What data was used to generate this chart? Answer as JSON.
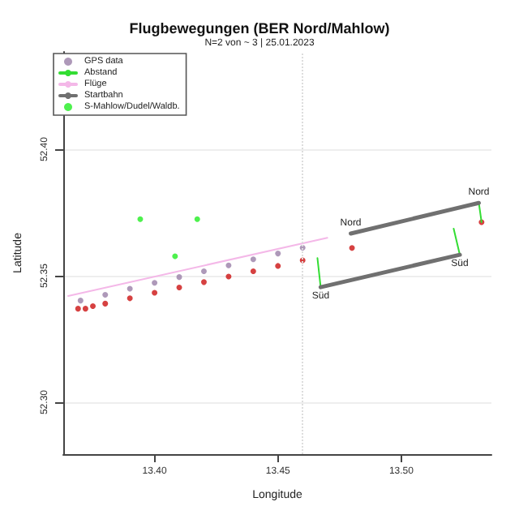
{
  "chart_data": {
    "type": "scatter",
    "title": "Flugbewegungen (BER Nord/Mahlow)",
    "subtitle": "N=2 von ~ 3 | 25.01.2023",
    "xlabel": "Longitude",
    "ylabel": "Latitude",
    "xlim": [
      13.363,
      13.5365
    ],
    "ylim": [
      52.2795,
      52.4385
    ],
    "xticks": [
      {
        "value": 13.4,
        "label": "13.40"
      },
      13.45,
      {
        "value": 13.5,
        "label": "13.50"
      }
    ],
    "yticks": [
      {
        "value": 52.3,
        "label": "52.30"
      },
      52.35,
      {
        "value": 52.4,
        "label": "52.40"
      }
    ],
    "grid": "y",
    "legend": "top left",
    "marker": "circle",
    "series": [
      {
        "name": "GPS data",
        "type": "scatter",
        "color": "#9a7fa8",
        "x": [
          13.37,
          13.38,
          13.39,
          13.4,
          13.41,
          13.42,
          13.43,
          13.44,
          13.45,
          13.46
        ],
        "values": [
          52.3402,
          52.3425,
          52.3449,
          52.3472,
          52.3495,
          52.3518,
          52.3541,
          52.3565,
          52.3588,
          52.3611
        ]
      },
      {
        "name": "Abstand",
        "type": "line",
        "marker": "none",
        "color": "#33dd33",
        "x": [
          13.466,
          13.4673,
          null,
          13.5212,
          13.5237,
          null,
          13.5314,
          13.5325
        ],
        "values": [
          52.357,
          52.3455,
          null,
          52.3686,
          52.3583,
          null,
          52.3788,
          52.3712
        ]
      },
      {
        "name": "Flüge",
        "type": "line",
        "marker": "none",
        "color": "#f4b8e8",
        "x": [
          13.365,
          13.47
        ],
        "values": [
          52.342,
          52.365
        ]
      },
      {
        "name": "Startbahn",
        "type": "line",
        "marker": "none",
        "color": "#707070",
        "x": [
          13.4673,
          13.5237,
          null,
          13.4795,
          13.5314
        ],
        "values": [
          52.3455,
          52.3583,
          null,
          52.3667,
          52.3788
        ]
      },
      {
        "name": "S-Mahlow/Dudel/Waldb.",
        "type": "scatter",
        "color": "#22ee22",
        "x": [
          13.3942,
          13.4173,
          13.4083
        ],
        "values": [
          52.3724,
          52.3724,
          52.3577
        ]
      },
      {
        "type": "scatter",
        "color": "#cc1111",
        "x": [
          13.369,
          13.372,
          13.375,
          13.38,
          13.39,
          13.4,
          13.41,
          13.42,
          13.43,
          13.44,
          13.45,
          13.46,
          13.48,
          13.5325
        ],
        "values": [
          52.337,
          52.337,
          52.338,
          52.339,
          52.3411,
          52.3433,
          52.3454,
          52.3475,
          52.3497,
          52.3518,
          52.3539,
          52.3561,
          52.361,
          52.3712
        ]
      }
    ],
    "ref_lines": [
      {
        "axis": "x",
        "value": 13.46,
        "color": "#dddddd",
        "line_style": "dotted"
      }
    ],
    "annotations": [
      {
        "text": "Nord",
        "x": 13.4795,
        "y": 52.3667
      },
      {
        "text": "Nord",
        "x": 13.5314,
        "y": 52.3788
      },
      {
        "text": "Süd",
        "x": 13.4673,
        "y": 52.3455
      },
      {
        "text": "Süd",
        "x": 13.5237,
        "y": 52.3583
      }
    ]
  }
}
